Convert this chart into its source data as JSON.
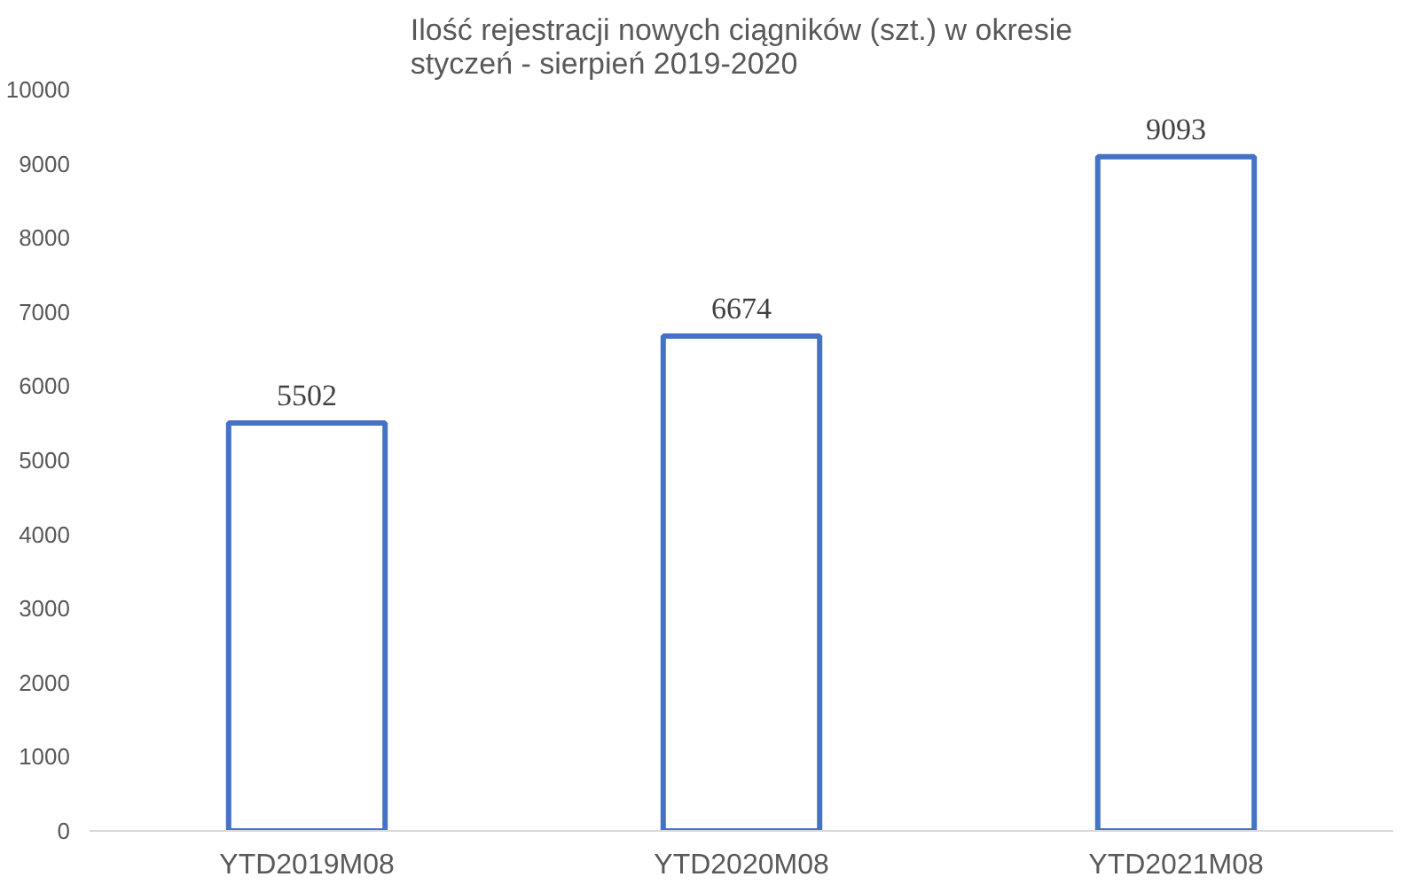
{
  "chart_data": {
    "type": "bar",
    "title": "Ilość rejestracji nowych ciągników (szt.) w okresie\nstyczeń - sierpień 2019-2020",
    "categories": [
      "YTD2019M08",
      "YTD2020M08",
      "YTD2021M08"
    ],
    "values": [
      5502,
      6674,
      9093
    ],
    "color": "#4472c4",
    "ylim": [
      0,
      10000
    ],
    "yticks": [
      0,
      1000,
      2000,
      3000,
      4000,
      5000,
      6000,
      7000,
      8000,
      9000,
      10000
    ],
    "grid": false,
    "data_labels": true
  }
}
